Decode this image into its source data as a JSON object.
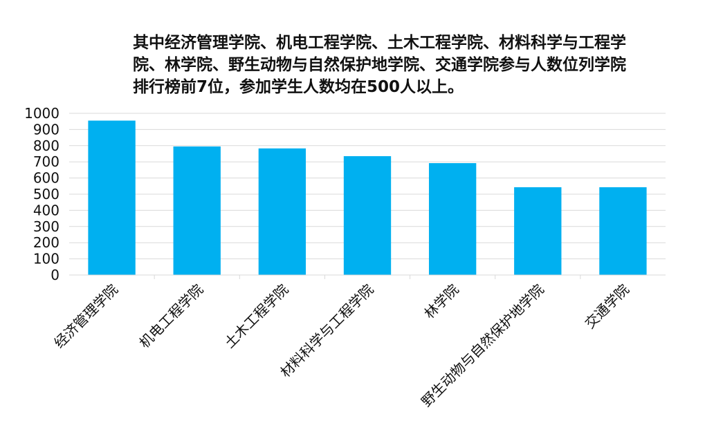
{
  "caption": "其中经济管理学院、机电工程学院、土木工程学院、材料科学与工程学院、林学院、野生动物与自然保护地学院、交通学院参与人数位列学院排行榜前7位，参加学生人数均在500人以上。",
  "colors": {
    "bar": "#00b0f0",
    "grid": "#d9d9d9",
    "text": "#111111"
  },
  "chart_data": {
    "type": "bar",
    "categories": [
      "经济管理学院",
      "机电工程学院",
      "土木工程学院",
      "材料科学与工程学院",
      "林学院",
      "野生动物与自然保护地学院",
      "交通学院"
    ],
    "values": [
      955,
      795,
      783,
      735,
      692,
      543,
      543
    ],
    "ylim": [
      0,
      1000
    ],
    "yticks": [
      0,
      100,
      200,
      300,
      400,
      500,
      600,
      700,
      800,
      900,
      1000
    ],
    "grid": true,
    "title": "",
    "xlabel": "",
    "ylabel": ""
  }
}
